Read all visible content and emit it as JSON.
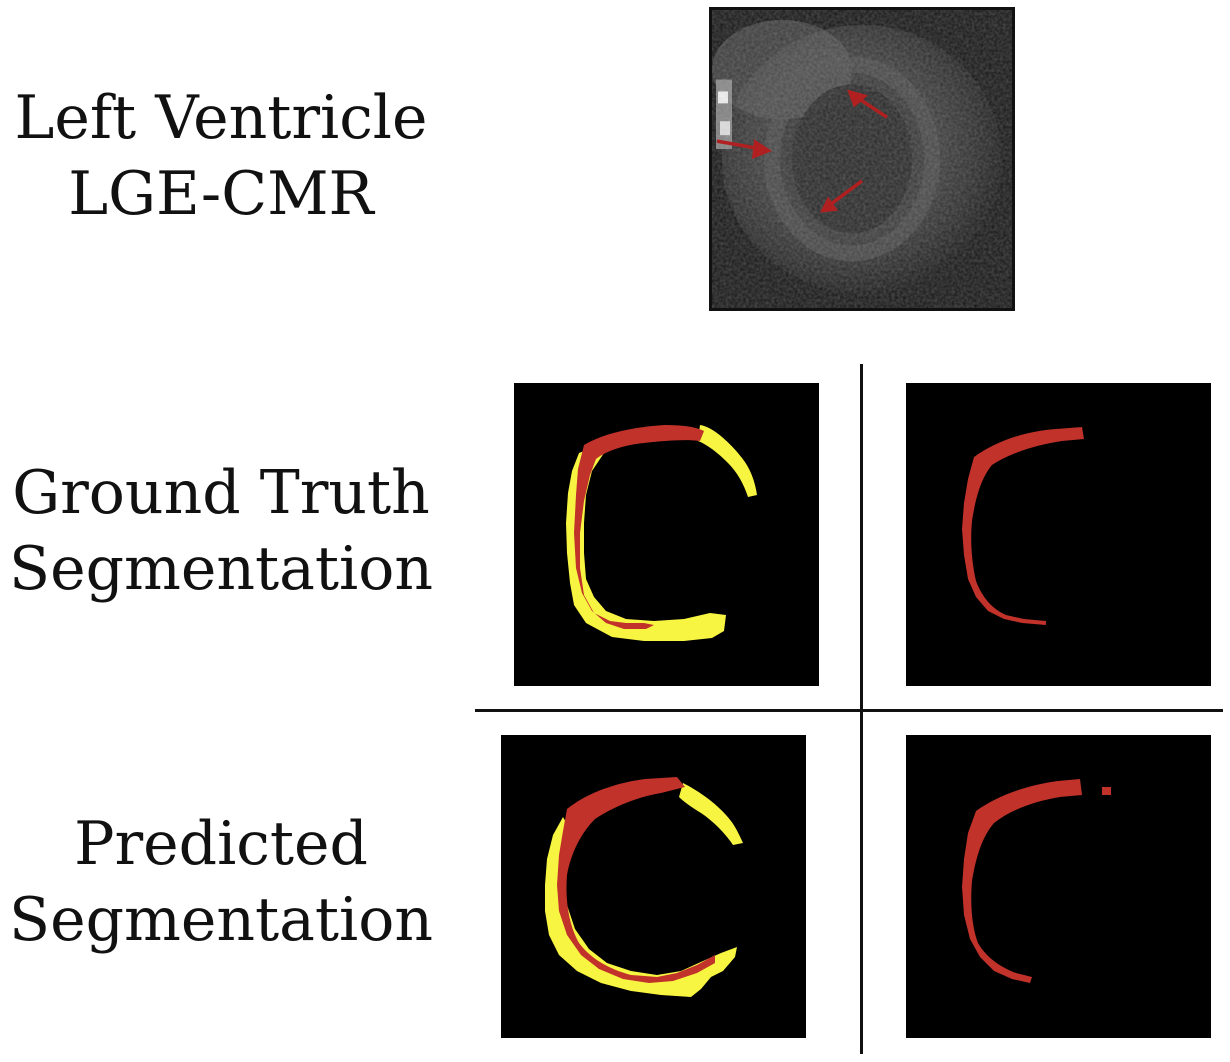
{
  "labels": {
    "lge_line1": "Left Ventricle",
    "lge_line2": "LGE-CMR",
    "gt_line1": "Ground Truth",
    "gt_line2": "Segmentation",
    "pred_line1": "Predicted",
    "pred_line2": "Segmentation"
  },
  "colors": {
    "scar_red": "#c0322a",
    "myocardium_yellow": "#f7f542",
    "panel_background": "#000000",
    "arrow_red": "#b02020"
  },
  "icons": [
    "arrow-icon"
  ]
}
